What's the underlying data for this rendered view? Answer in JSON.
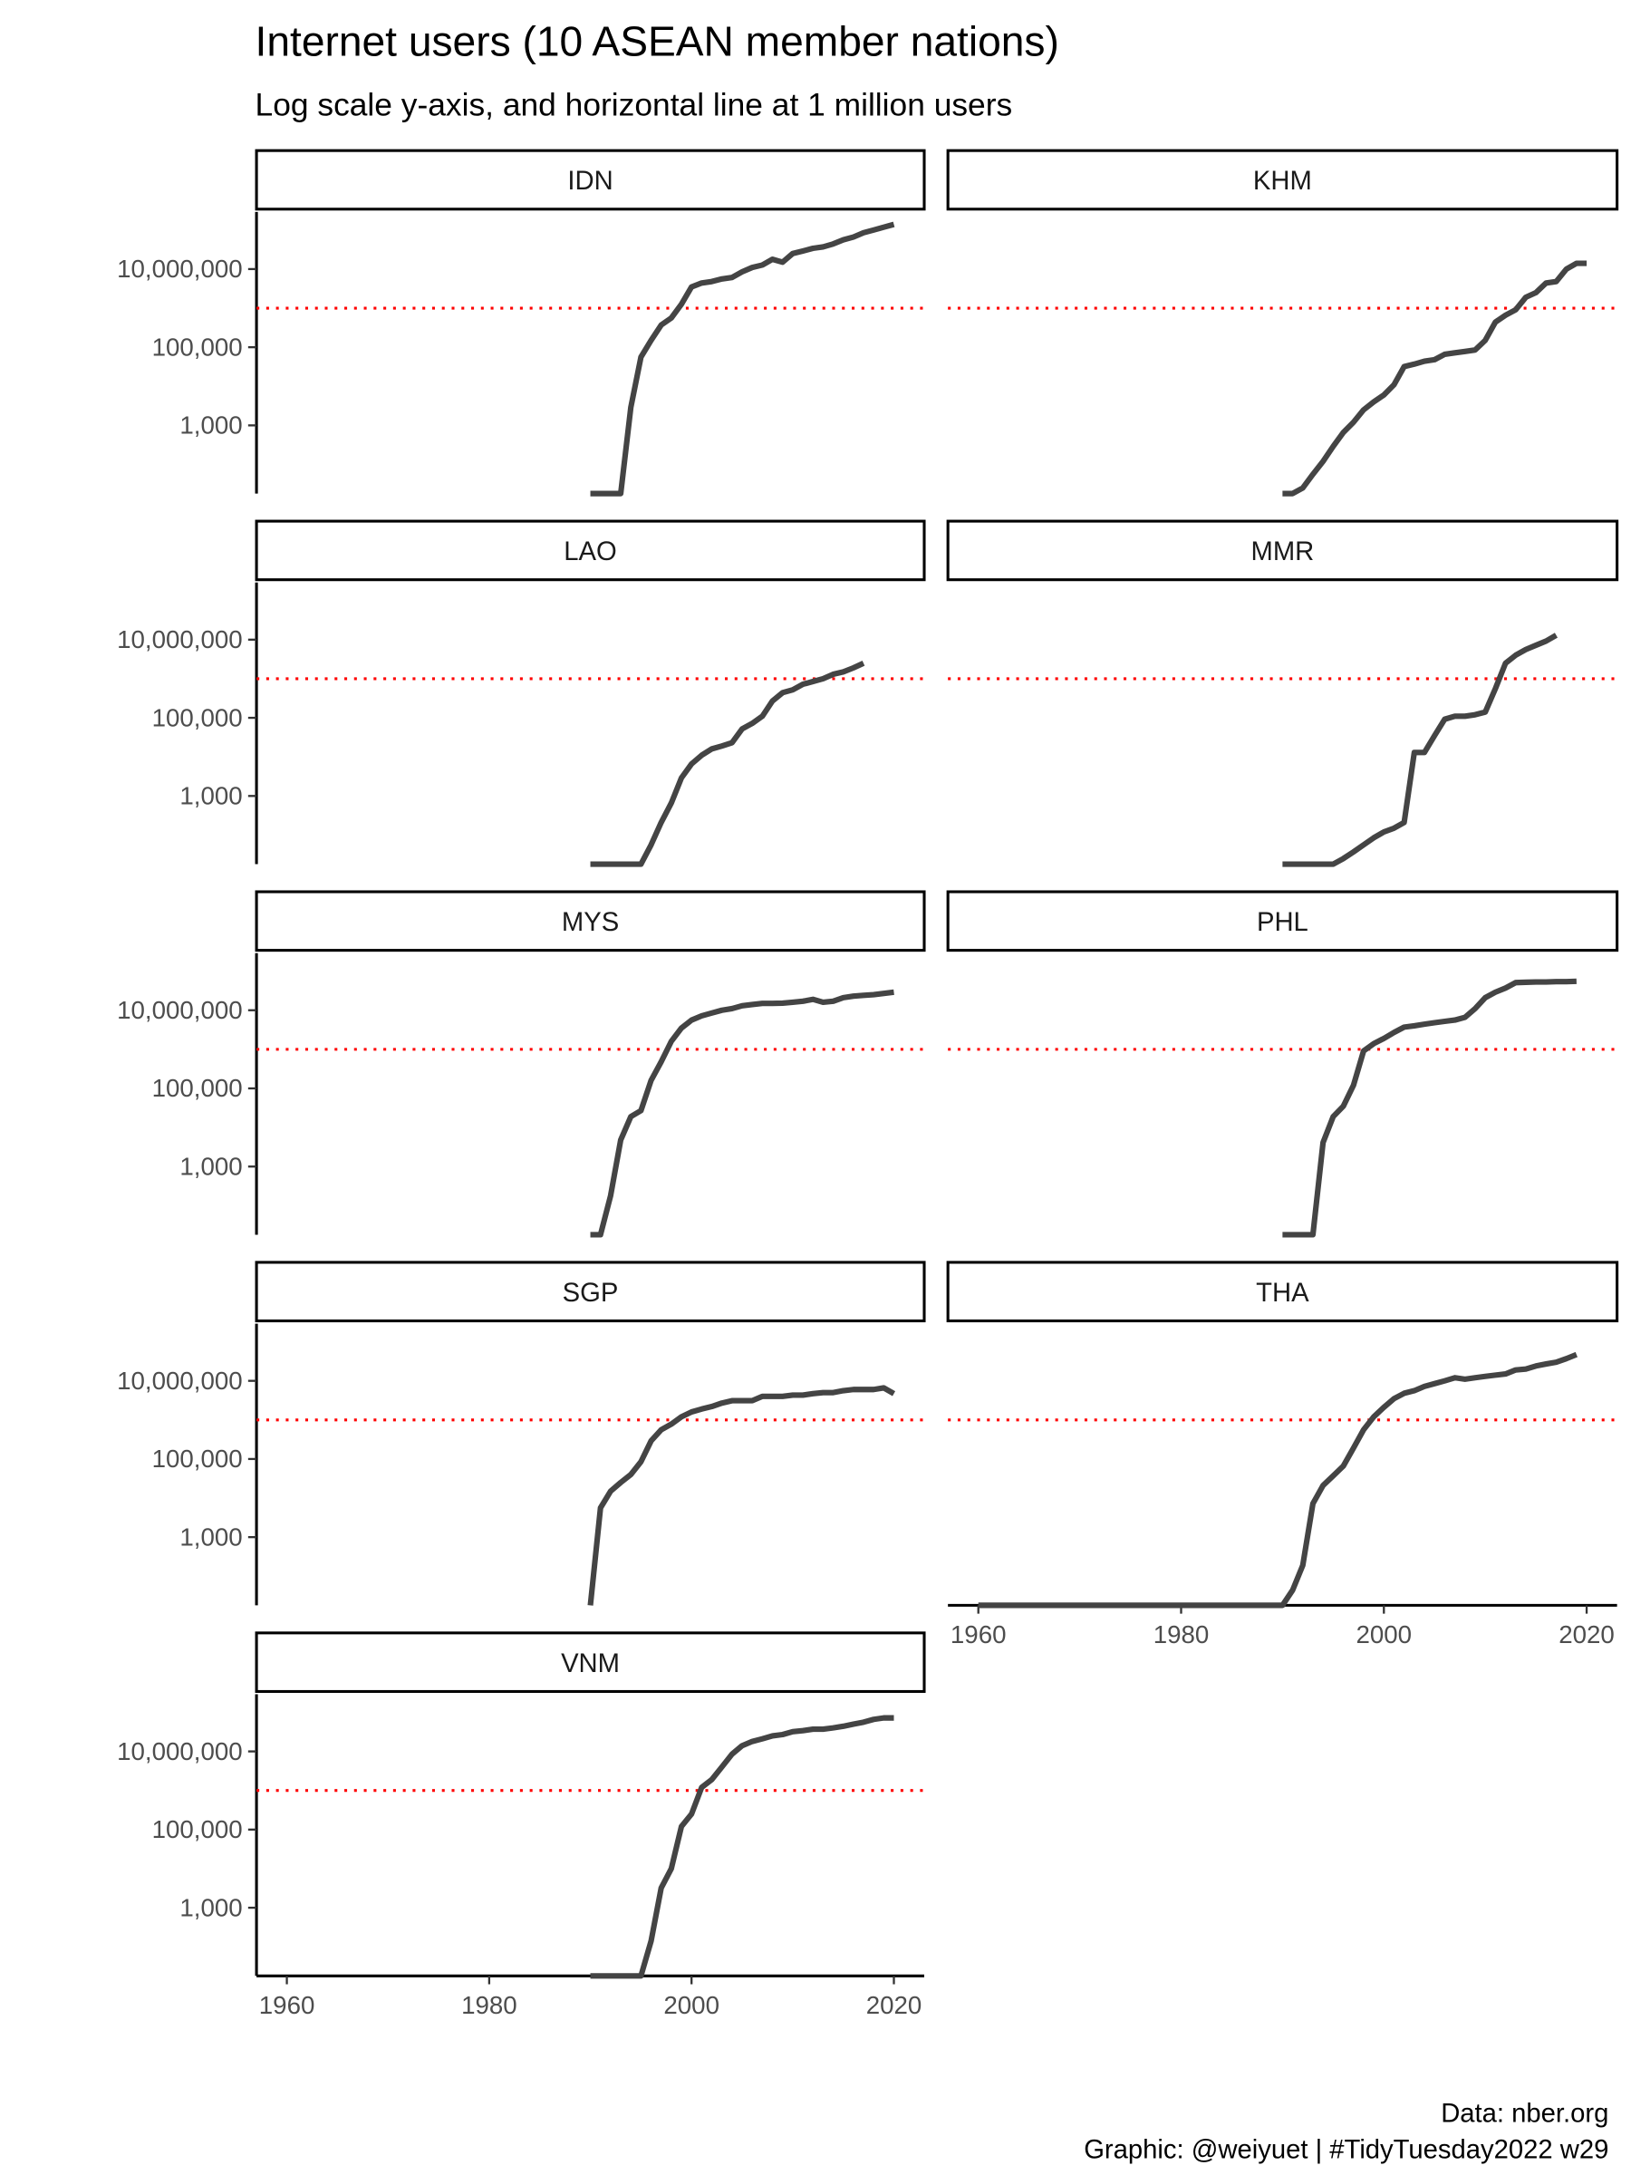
{
  "title": "Internet users (10 ASEAN member nations)",
  "subtitle": "Log scale y-axis, and horizontal line at 1 million users",
  "caption": [
    "Data: nber.org",
    "Graphic: @weiyuet | #TidyTuesday2022 w29"
  ],
  "chart_data": [
    {
      "type": "line",
      "title": "IDN",
      "color": "#444444",
      "log_y": true,
      "reference_line": 1000000,
      "reference_color": "#ff0000",
      "xlim": [
        1957,
        2023
      ],
      "ylim": [
        18,
        290000000
      ],
      "yticks": [
        {
          "value": 1000,
          "label": "1,000"
        },
        {
          "value": 100000,
          "label": "100,000"
        },
        {
          "value": 10000000,
          "label": "10,000,000"
        }
      ],
      "x": [
        1990,
        1991,
        1992,
        1993,
        1994,
        1995,
        1996,
        1997,
        1998,
        1999,
        2000,
        2001,
        2002,
        2003,
        2004,
        2005,
        2006,
        2007,
        2008,
        2009,
        2010,
        2011,
        2012,
        2013,
        2014,
        2015,
        2016,
        2017,
        2018,
        2019,
        2020
      ],
      "values": [
        0,
        0,
        0,
        0,
        2900,
        56000,
        150000,
        370000,
        560000,
        1260000,
        3500000,
        4400000,
        4800000,
        5600000,
        6100000,
        8500000,
        11000000,
        12700000,
        17800000,
        15000000,
        25000000,
        29000000,
        34000000,
        37000000,
        44000000,
        56000000,
        66000000,
        85000000,
        100000000,
        118000000,
        139000000
      ]
    },
    {
      "type": "line",
      "title": "KHM",
      "color": "#444444",
      "log_y": true,
      "reference_line": 1000000,
      "reference_color": "#ff0000",
      "xlim": [
        1957,
        2023
      ],
      "ylim": [
        18,
        290000000
      ],
      "x": [
        1990,
        1991,
        1992,
        1993,
        1994,
        1995,
        1996,
        1997,
        1998,
        1999,
        2000,
        2001,
        2002,
        2003,
        2004,
        2005,
        2006,
        2007,
        2008,
        2009,
        2010,
        2011,
        2012,
        2013,
        2014,
        2015,
        2016,
        2017,
        2018,
        2019,
        2020
      ],
      "values": [
        0,
        0,
        25,
        56,
        120,
        290,
        660,
        1200,
        2500,
        4000,
        6000,
        11000,
        32000,
        37000,
        44000,
        48000,
        66000,
        72000,
        78000,
        85000,
        150000,
        440000,
        660000,
        910000,
        1900000,
        2500000,
        4400000,
        4800000,
        10000000,
        14000000,
        14000000
      ]
    },
    {
      "type": "line",
      "title": "LAO",
      "color": "#444444",
      "log_y": true,
      "reference_line": 1000000,
      "reference_color": "#ff0000",
      "xlim": [
        1957,
        2023
      ],
      "ylim": [
        18,
        290000000
      ],
      "yticks": [
        {
          "value": 1000,
          "label": "1,000"
        },
        {
          "value": 100000,
          "label": "100,000"
        },
        {
          "value": 10000000,
          "label": "10,000,000"
        }
      ],
      "x": [
        1990,
        1991,
        1992,
        1993,
        1994,
        1995,
        1996,
        1997,
        1998,
        1999,
        2000,
        2001,
        2002,
        2003,
        2004,
        2005,
        2006,
        2007,
        2008,
        2009,
        2010,
        2011,
        2012,
        2013,
        2014,
        2015,
        2016,
        2017
      ],
      "values": [
        0,
        0,
        0,
        0,
        0,
        0,
        56,
        210,
        660,
        2900,
        6600,
        11000,
        16000,
        19000,
        23000,
        52000,
        72000,
        110000,
        270000,
        440000,
        520000,
        720000,
        850000,
        1000000,
        1300000,
        1500000,
        1900000,
        2500000
      ]
    },
    {
      "type": "line",
      "title": "MMR",
      "color": "#444444",
      "log_y": true,
      "reference_line": 1000000,
      "reference_color": "#ff0000",
      "xlim": [
        1957,
        2023
      ],
      "ylim": [
        18,
        290000000
      ],
      "x": [
        1990,
        1991,
        1992,
        1993,
        1994,
        1995,
        1996,
        1997,
        1998,
        1999,
        2000,
        2001,
        2002,
        2003,
        2004,
        2005,
        2006,
        2007,
        2008,
        2009,
        2010,
        2011,
        2012,
        2013,
        2014,
        2015,
        2016,
        2017
      ],
      "values": [
        0,
        0,
        0,
        0,
        0,
        0,
        25,
        37,
        56,
        85,
        120,
        150,
        210,
        13000,
        13000,
        35000,
        92000,
        110000,
        110000,
        120000,
        140000,
        560000,
        2500000,
        4000000,
        5600000,
        7200000,
        9200000,
        13000000
      ]
    },
    {
      "type": "line",
      "title": "MYS",
      "color": "#444444",
      "log_y": true,
      "reference_line": 1000000,
      "reference_color": "#ff0000",
      "xlim": [
        1957,
        2023
      ],
      "ylim": [
        18,
        290000000
      ],
      "yticks": [
        {
          "value": 1000,
          "label": "1,000"
        },
        {
          "value": 100000,
          "label": "100,000"
        },
        {
          "value": 10000000,
          "label": "10,000,000"
        }
      ],
      "x": [
        1990,
        1991,
        1992,
        1993,
        1994,
        1995,
        1996,
        1997,
        1998,
        1999,
        2000,
        2001,
        2002,
        2003,
        2004,
        2005,
        2006,
        2007,
        2008,
        2009,
        2010,
        2011,
        2012,
        2013,
        2014,
        2015,
        2016,
        2017,
        2018,
        2019,
        2020
      ],
      "values": [
        0,
        0,
        180,
        4800,
        19000,
        27000,
        160000,
        480000,
        1600000,
        3500000,
        5600000,
        7200000,
        8500000,
        10000000,
        11000000,
        13000000,
        14000000,
        15000000,
        15000000,
        15200000,
        16000000,
        17000000,
        19000000,
        16000000,
        17000000,
        21000000,
        23000000,
        24000000,
        25000000,
        27000000,
        29000000
      ]
    },
    {
      "type": "line",
      "title": "PHL",
      "color": "#444444",
      "log_y": true,
      "reference_line": 1000000,
      "reference_color": "#ff0000",
      "xlim": [
        1957,
        2023
      ],
      "ylim": [
        18,
        290000000
      ],
      "x": [
        1990,
        1991,
        1992,
        1993,
        1994,
        1995,
        1996,
        1997,
        1998,
        1999,
        2000,
        2001,
        2002,
        2003,
        2004,
        2005,
        2006,
        2007,
        2008,
        2009,
        2010,
        2011,
        2012,
        2013,
        2014,
        2015,
        2016,
        2017,
        2018,
        2019
      ],
      "values": [
        0,
        0,
        0,
        0,
        4100,
        19000,
        35000,
        120000,
        910000,
        1400000,
        1900000,
        2700000,
        3700000,
        4000000,
        4400000,
        4800000,
        5200000,
        5600000,
        6600000,
        11000000,
        21000000,
        29000000,
        37000000,
        51000000,
        52000000,
        53000000,
        53000000,
        54000000,
        54000000,
        55000000
      ]
    },
    {
      "type": "line",
      "title": "SGP",
      "color": "#444444",
      "log_y": true,
      "reference_line": 1000000,
      "reference_color": "#ff0000",
      "xlim": [
        1957,
        2023
      ],
      "ylim": [
        18,
        290000000
      ],
      "yticks": [
        {
          "value": 1000,
          "label": "1,000"
        },
        {
          "value": 100000,
          "label": "100,000"
        },
        {
          "value": 10000000,
          "label": "10,000,000"
        }
      ],
      "x": [
        1990,
        1991,
        1992,
        1993,
        1994,
        1995,
        1996,
        1997,
        1998,
        1999,
        2000,
        2001,
        2002,
        2003,
        2004,
        2005,
        2006,
        2007,
        2008,
        2009,
        2010,
        2011,
        2012,
        2013,
        2014,
        2015,
        2016,
        2017,
        2018,
        2019,
        2020
      ],
      "values": [
        0,
        5600,
        15000,
        25000,
        40000,
        85000,
        290000,
        560000,
        780000,
        1200000,
        1600000,
        1900000,
        2200000,
        2700000,
        3100000,
        3100000,
        3100000,
        4000000,
        4000000,
        4000000,
        4300000,
        4300000,
        4700000,
        5000000,
        5000000,
        5600000,
        6000000,
        6000000,
        6000000,
        6600000,
        4700000
      ]
    },
    {
      "type": "line",
      "title": "THA",
      "color": "#444444",
      "log_y": true,
      "reference_line": 1000000,
      "reference_color": "#ff0000",
      "xlim": [
        1957,
        2023
      ],
      "ylim": [
        18,
        290000000
      ],
      "xticks": [
        1960,
        1980,
        2000,
        2020
      ],
      "x": [
        1960,
        1961,
        1962,
        1963,
        1964,
        1965,
        1966,
        1967,
        1968,
        1969,
        1970,
        1971,
        1972,
        1973,
        1974,
        1975,
        1976,
        1977,
        1978,
        1979,
        1980,
        1981,
        1982,
        1983,
        1984,
        1985,
        1986,
        1987,
        1988,
        1989,
        1990,
        1991,
        1992,
        1993,
        1994,
        1995,
        1996,
        1997,
        1998,
        1999,
        2000,
        2001,
        2002,
        2003,
        2004,
        2005,
        2006,
        2007,
        2008,
        2009,
        2010,
        2011,
        2012,
        2013,
        2014,
        2015,
        2016,
        2017,
        2018,
        2019
      ],
      "values": [
        0,
        0,
        0,
        0,
        0,
        0,
        0,
        0,
        0,
        0,
        0,
        0,
        0,
        0,
        0,
        0,
        0,
        0,
        0,
        0,
        0,
        0,
        0,
        0,
        0,
        0,
        0,
        0,
        0,
        0,
        0,
        44,
        190,
        7200,
        21000,
        37000,
        66000,
        190000,
        560000,
        1200000,
        2100000,
        3500000,
        4800000,
        5600000,
        7200000,
        8500000,
        10000000,
        12000000,
        11000000,
        12000000,
        13000000,
        14000000,
        15000000,
        19000000,
        20000000,
        24000000,
        27000000,
        30000000,
        37000000,
        47000000
      ]
    },
    {
      "type": "line",
      "title": "VNM",
      "color": "#444444",
      "log_y": true,
      "reference_line": 1000000,
      "reference_color": "#ff0000",
      "xlim": [
        1957,
        2023
      ],
      "ylim": [
        18,
        290000000
      ],
      "yticks": [
        {
          "value": 1000,
          "label": "1,000"
        },
        {
          "value": 100000,
          "label": "100,000"
        },
        {
          "value": 10000000,
          "label": "10,000,000"
        }
      ],
      "xticks": [
        1960,
        1980,
        2000,
        2020
      ],
      "x": [
        1990,
        1991,
        1992,
        1993,
        1994,
        1995,
        1996,
        1997,
        1998,
        1999,
        2000,
        2001,
        2002,
        2003,
        2004,
        2005,
        2006,
        2007,
        2008,
        2009,
        2010,
        2011,
        2012,
        2013,
        2014,
        2015,
        2016,
        2017,
        2018,
        2019,
        2020
      ],
      "values": [
        0,
        0,
        0,
        0,
        0,
        0,
        140,
        3200,
        10000,
        120000,
        250000,
        1200000,
        1900000,
        4000000,
        8500000,
        14000000,
        18000000,
        21000000,
        25000000,
        27000000,
        32000000,
        34000000,
        37000000,
        37000000,
        40000000,
        44000000,
        50000000,
        56000000,
        66000000,
        72000000,
        72000000
      ]
    }
  ]
}
